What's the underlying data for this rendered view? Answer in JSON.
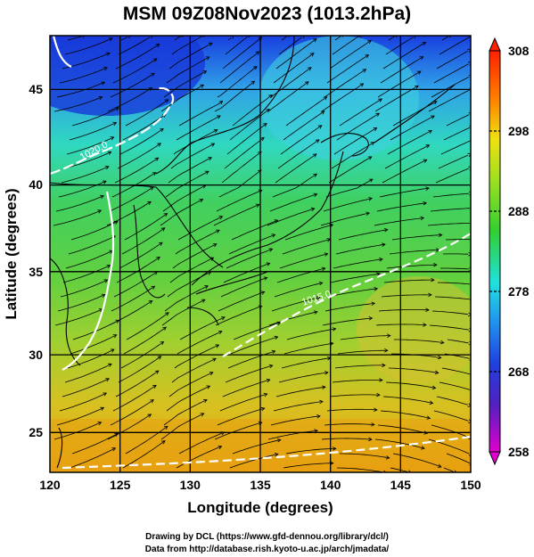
{
  "title": "MSM 09Z08Nov2023 (1013.2hPa)",
  "x_axis": {
    "label": "Longitude (degrees)",
    "ticks": [
      "120",
      "125",
      "130",
      "135",
      "140",
      "145",
      "150"
    ],
    "range": [
      120,
      150
    ]
  },
  "y_axis": {
    "label": "Latitude  (degrees)",
    "ticks": [
      "25",
      "30",
      "35",
      "40",
      "45"
    ],
    "range": [
      22.4,
      47.6
    ]
  },
  "colorbar": {
    "ticks": [
      "258",
      "268",
      "278",
      "288",
      "298",
      "308"
    ],
    "range": [
      258,
      308
    ],
    "colors": [
      "#e000d0",
      "#2040e0",
      "#20e0e0",
      "#30d030",
      "#d0e010",
      "#ff8000",
      "#ff2000"
    ]
  },
  "contour_labels": [
    "1020.0",
    "1015.0"
  ],
  "footer": {
    "line1": "Drawing by DCL (https://www.gfd-dennou.org/library/dcl/)",
    "line2": "Data from http://database.rish.kyoto-u.ac.jp/arch/jmadata/"
  },
  "chart_data": {
    "type": "heatmap",
    "field": "temperature (K) with wind streamlines and pressure contours",
    "xlim": [
      120,
      150
    ],
    "ylim": [
      22.4,
      47.6
    ],
    "clim": [
      258,
      308
    ],
    "xlabel": "Longitude (degrees)",
    "ylabel": "Latitude  (degrees)"
  }
}
